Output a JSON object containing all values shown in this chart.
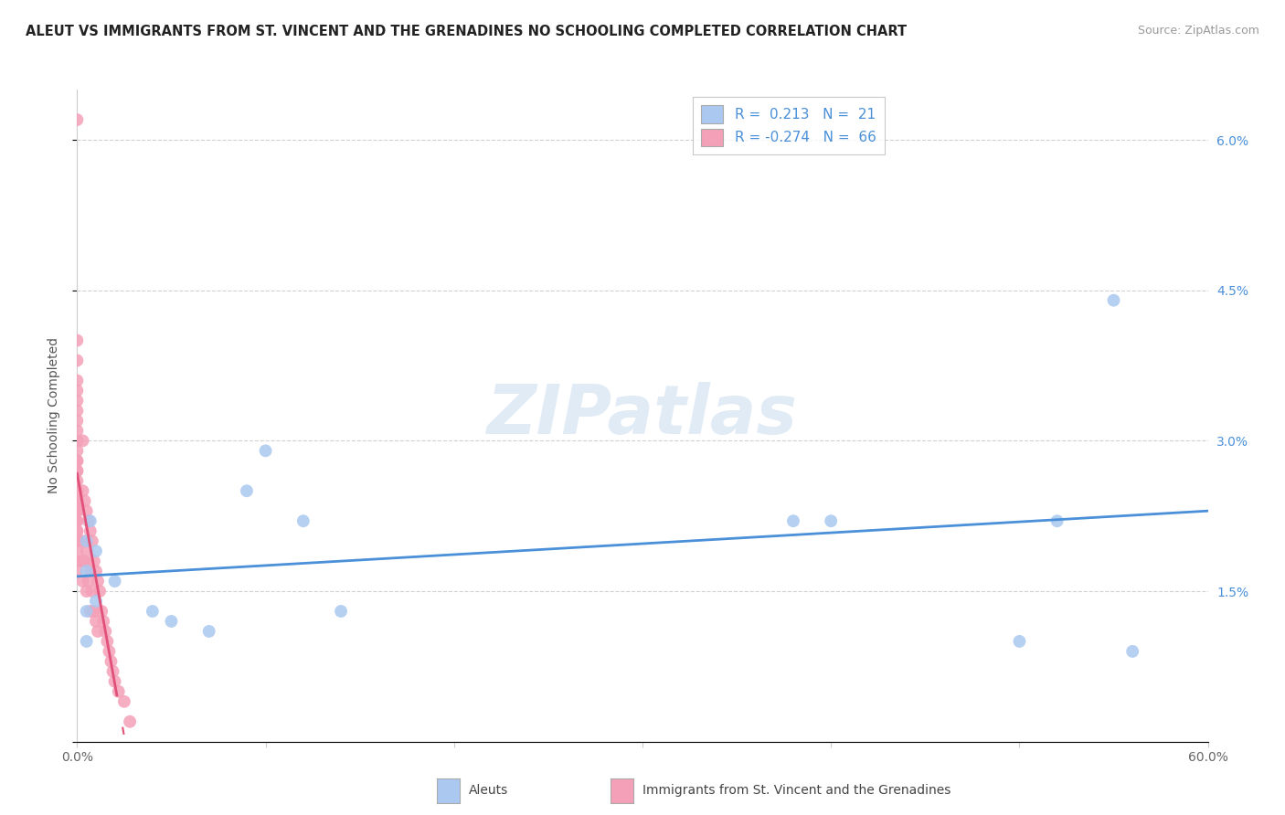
{
  "title": "ALEUT VS IMMIGRANTS FROM ST. VINCENT AND THE GRENADINES NO SCHOOLING COMPLETED CORRELATION CHART",
  "source": "Source: ZipAtlas.com",
  "ylabel": "No Schooling Completed",
  "watermark": "ZIPatlas",
  "aleut_r": 0.213,
  "aleut_n": 21,
  "svg_r": -0.274,
  "svg_n": 66,
  "aleut_color": "#aac8f0",
  "svg_color": "#f4a0b8",
  "aleut_line_color": "#4a90d9",
  "svg_line_color": "#e05078",
  "xlim": [
    0.0,
    0.6
  ],
  "ylim": [
    0.0,
    0.065
  ],
  "xticks": [
    0.0,
    0.1,
    0.2,
    0.3,
    0.4,
    0.5,
    0.6
  ],
  "yticks": [
    0.0,
    0.015,
    0.03,
    0.045,
    0.06
  ],
  "ytick_labels": [
    "",
    "1.5%",
    "3.0%",
    "4.5%",
    "6.0%"
  ],
  "xtick_labels": [
    "0.0%",
    "",
    "",
    "",
    "",
    "",
    "60.0%"
  ],
  "bg_color": "#ffffff",
  "grid_color": "#cccccc",
  "aleut_x": [
    0.005,
    0.005,
    0.005,
    0.005,
    0.007,
    0.01,
    0.01,
    0.02,
    0.04,
    0.05,
    0.07,
    0.09,
    0.1,
    0.12,
    0.14,
    0.38,
    0.4,
    0.5,
    0.52,
    0.55,
    0.56
  ],
  "aleut_y": [
    0.02,
    0.017,
    0.013,
    0.01,
    0.022,
    0.019,
    0.014,
    0.016,
    0.013,
    0.012,
    0.011,
    0.025,
    0.029,
    0.022,
    0.013,
    0.022,
    0.022,
    0.01,
    0.022,
    0.044,
    0.009
  ],
  "svg_x": [
    0.0,
    0.0,
    0.0,
    0.0,
    0.0,
    0.0,
    0.0,
    0.0,
    0.0,
    0.0,
    0.0,
    0.0,
    0.0,
    0.0,
    0.0,
    0.0,
    0.0,
    0.0,
    0.0,
    0.0,
    0.0,
    0.0,
    0.0,
    0.0,
    0.0,
    0.0,
    0.0,
    0.0,
    0.0,
    0.0,
    0.0,
    0.003,
    0.003,
    0.003,
    0.003,
    0.003,
    0.004,
    0.004,
    0.005,
    0.005,
    0.005,
    0.006,
    0.006,
    0.007,
    0.007,
    0.007,
    0.008,
    0.008,
    0.009,
    0.009,
    0.01,
    0.01,
    0.011,
    0.011,
    0.012,
    0.013,
    0.014,
    0.015,
    0.016,
    0.017,
    0.018,
    0.019,
    0.02,
    0.022,
    0.025,
    0.028
  ],
  "svg_y": [
    0.062,
    0.04,
    0.038,
    0.036,
    0.035,
    0.034,
    0.033,
    0.032,
    0.031,
    0.03,
    0.029,
    0.028,
    0.028,
    0.027,
    0.027,
    0.026,
    0.025,
    0.025,
    0.024,
    0.024,
    0.023,
    0.023,
    0.022,
    0.022,
    0.021,
    0.021,
    0.02,
    0.02,
    0.019,
    0.018,
    0.017,
    0.03,
    0.025,
    0.02,
    0.018,
    0.016,
    0.024,
    0.018,
    0.023,
    0.019,
    0.015,
    0.022,
    0.016,
    0.021,
    0.017,
    0.013,
    0.02,
    0.015,
    0.018,
    0.013,
    0.017,
    0.012,
    0.016,
    0.011,
    0.015,
    0.013,
    0.012,
    0.011,
    0.01,
    0.009,
    0.008,
    0.007,
    0.006,
    0.005,
    0.004,
    0.002
  ]
}
